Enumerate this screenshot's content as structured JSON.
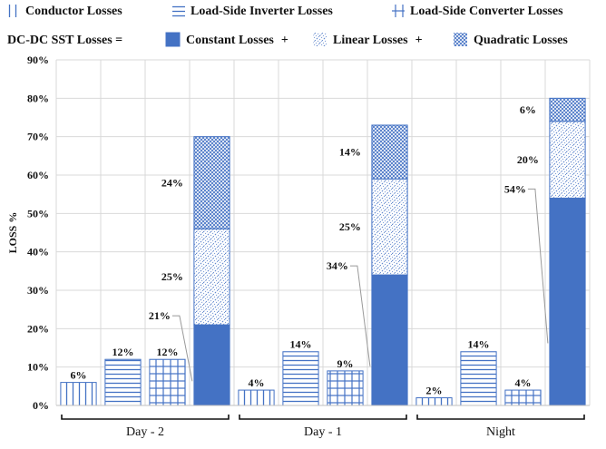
{
  "colors": {
    "accent": "#4472C4",
    "solid_fill": "#4472C4",
    "grid": "#d9d9d9",
    "text": "#111111"
  },
  "legend": {
    "row1": [
      {
        "key": "conductor",
        "label": "Conductor Losses",
        "pattern": "vertical-lines"
      },
      {
        "key": "load_inverter",
        "label": "Load-Side Inverter Losses",
        "pattern": "horizontal-lines"
      },
      {
        "key": "load_converter",
        "label": "Load-Side Converter Losses",
        "pattern": "grid"
      }
    ],
    "row2_prefix": "DC-DC SST Losses  =",
    "row2": [
      {
        "key": "constant",
        "label": "Constant Losses",
        "pattern": "solid",
        "suffix": "+"
      },
      {
        "key": "linear",
        "label": "Linear Losses",
        "pattern": "wave",
        "suffix": "+"
      },
      {
        "key": "quadratic",
        "label": "Quadratic Losses",
        "pattern": "crosshatch",
        "suffix": ""
      }
    ]
  },
  "chart_data": {
    "type": "bar",
    "stacked_last_bar": true,
    "ylabel": "LOSS %",
    "ylim": [
      0,
      90
    ],
    "yticks": [
      "0%",
      "10%",
      "20%",
      "30%",
      "40%",
      "50%",
      "60%",
      "70%",
      "80%",
      "90%"
    ],
    "grid": true,
    "legend_position": "top",
    "groups": [
      {
        "name": "Day - 2",
        "bars": [
          {
            "series": "conductor",
            "value": 6,
            "label": "6%"
          },
          {
            "series": "load_inverter",
            "value": 12,
            "label": "12%"
          },
          {
            "series": "load_converter",
            "value": 12,
            "label": "12%"
          },
          {
            "series": "dc_dc_sst",
            "stack": [
              {
                "part": "constant",
                "value": 21,
                "label": "21%"
              },
              {
                "part": "linear",
                "value": 25,
                "label": "25%"
              },
              {
                "part": "quadratic",
                "value": 24,
                "label": "24%"
              }
            ]
          }
        ]
      },
      {
        "name": "Day - 1",
        "bars": [
          {
            "series": "conductor",
            "value": 4,
            "label": "4%"
          },
          {
            "series": "load_inverter",
            "value": 14,
            "label": "14%"
          },
          {
            "series": "load_converter",
            "value": 9,
            "label": "9%"
          },
          {
            "series": "dc_dc_sst",
            "stack": [
              {
                "part": "constant",
                "value": 34,
                "label": "34%"
              },
              {
                "part": "linear",
                "value": 25,
                "label": "25%"
              },
              {
                "part": "quadratic",
                "value": 14,
                "label": "14%"
              }
            ]
          }
        ]
      },
      {
        "name": "Night",
        "bars": [
          {
            "series": "conductor",
            "value": 2,
            "label": "2%"
          },
          {
            "series": "load_inverter",
            "value": 14,
            "label": "14%"
          },
          {
            "series": "load_converter",
            "value": 4,
            "label": "4%"
          },
          {
            "series": "dc_dc_sst",
            "stack": [
              {
                "part": "constant",
                "value": 54,
                "label": "54%"
              },
              {
                "part": "linear",
                "value": 20,
                "label": "20%"
              },
              {
                "part": "quadratic",
                "value": 6,
                "label": "6%"
              }
            ]
          }
        ]
      }
    ]
  }
}
